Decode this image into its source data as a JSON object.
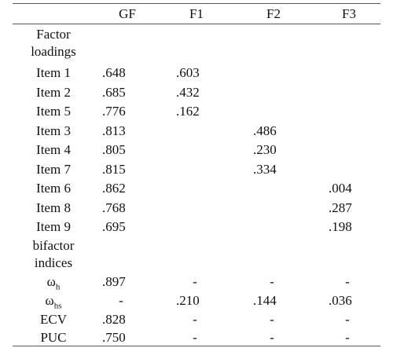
{
  "table": {
    "columns": [
      "",
      "GF",
      "F1",
      "F2",
      "F3"
    ],
    "section_factor": [
      "Factor",
      "loadings"
    ],
    "section_bifactor": [
      "bifactor",
      "indices"
    ],
    "items": [
      {
        "label": "Item 1",
        "gf": ".648",
        "f1": ".603",
        "f2": "",
        "f3": ""
      },
      {
        "label": "Item 2",
        "gf": ".685",
        "f1": ".432",
        "f2": "",
        "f3": ""
      },
      {
        "label": "Item 5",
        "gf": ".776",
        "f1": ".162",
        "f2": "",
        "f3": ""
      },
      {
        "label": "Item 3",
        "gf": ".813",
        "f1": "",
        "f2": ".486",
        "f3": ""
      },
      {
        "label": "Item 4",
        "gf": ".805",
        "f1": "",
        "f2": ".230",
        "f3": ""
      },
      {
        "label": "Item 7",
        "gf": ".815",
        "f1": "",
        "f2": ".334",
        "f3": ""
      },
      {
        "label": "Item 6",
        "gf": ".862",
        "f1": "",
        "f2": "",
        "f3": ".004"
      },
      {
        "label": "Item 8",
        "gf": ".768",
        "f1": "",
        "f2": "",
        "f3": ".287"
      },
      {
        "label": "Item 9",
        "gf": ".695",
        "f1": "",
        "f2": "",
        "f3": ".198"
      }
    ],
    "indices": [
      {
        "symbol": "ω",
        "sub": "h",
        "gf": ".897",
        "f1": "-",
        "f2": "-",
        "f3": "-"
      },
      {
        "symbol": "ω",
        "sub": "hs",
        "gf": "-",
        "f1": ".210",
        "f2": ".144",
        "f3": ".036"
      },
      {
        "label": "ECV",
        "gf": ".828",
        "f1": "-",
        "f2": "-",
        "f3": "-"
      },
      {
        "label": "PUC",
        "gf": ".750",
        "f1": "-",
        "f2": "-",
        "f3": "-"
      }
    ]
  }
}
